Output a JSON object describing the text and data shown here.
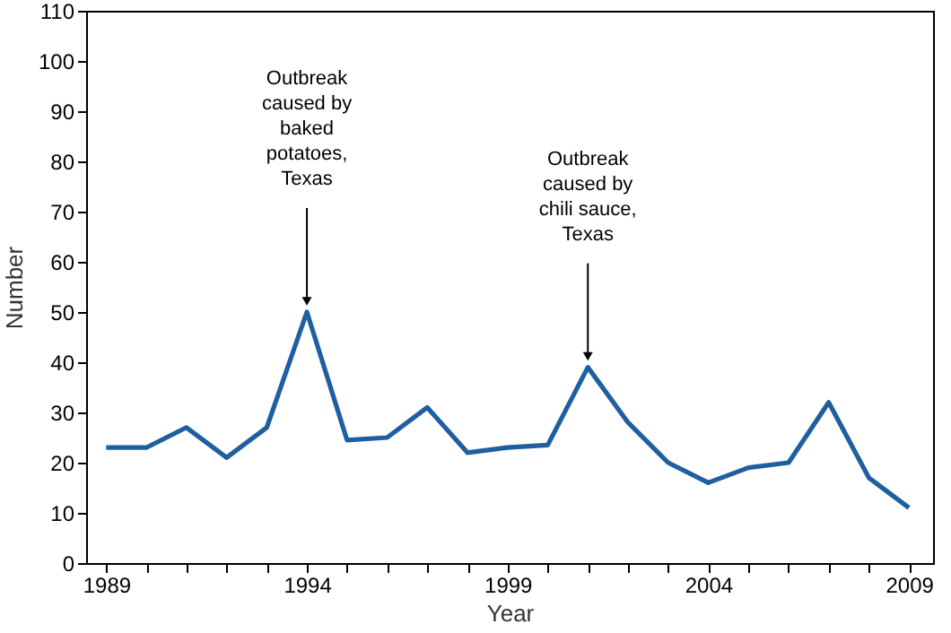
{
  "chart_data": {
    "type": "line",
    "xlabel": "Year",
    "ylabel": "Number",
    "x": [
      1989,
      1990,
      1991,
      1992,
      1993,
      1994,
      1995,
      1996,
      1997,
      1998,
      1999,
      2000,
      2001,
      2002,
      2003,
      2004,
      2005,
      2006,
      2007,
      2008,
      2009
    ],
    "series": [
      {
        "color": "#1f5f9f",
        "values": [
          23,
          23,
          27,
          21,
          27,
          50,
          24.5,
          25,
          31,
          22,
          23,
          23.5,
          39,
          28,
          20,
          16,
          19,
          20,
          32,
          17,
          11
        ]
      }
    ],
    "xlim": [
      1988.5,
      2009.6
    ],
    "xticks": [
      1989,
      {
        "value": 1990,
        "label": null
      },
      {
        "value": 1991,
        "label": null
      },
      {
        "value": 1992,
        "label": null
      },
      {
        "value": 1993,
        "label": null
      },
      1994,
      {
        "value": 1995,
        "label": null
      },
      {
        "value": 1996,
        "label": null
      },
      {
        "value": 1997,
        "label": null
      },
      {
        "value": 1998,
        "label": null
      },
      1999,
      {
        "value": 2000,
        "label": null
      },
      {
        "value": 2001,
        "label": null
      },
      {
        "value": 2002,
        "label": null
      },
      {
        "value": 2003,
        "label": null
      },
      2004,
      {
        "value": 2005,
        "label": null
      },
      {
        "value": 2006,
        "label": null
      },
      {
        "value": 2007,
        "label": null
      },
      {
        "value": 2008,
        "label": null
      },
      2009
    ],
    "ylim": [
      0,
      110
    ],
    "yticks": [
      0,
      10,
      20,
      30,
      40,
      50,
      60,
      70,
      80,
      90,
      100,
      110
    ],
    "annotations": [
      {
        "text": "Outbreak\ncaused by\nbaked\npotatoes,\nTexas",
        "x": 1994,
        "y": 50
      },
      {
        "text": "Outbreak\ncaused by\nchili sauce,\nTexas",
        "x": 2001,
        "y": 39
      }
    ],
    "marker": "none",
    "line_style": "solid"
  }
}
